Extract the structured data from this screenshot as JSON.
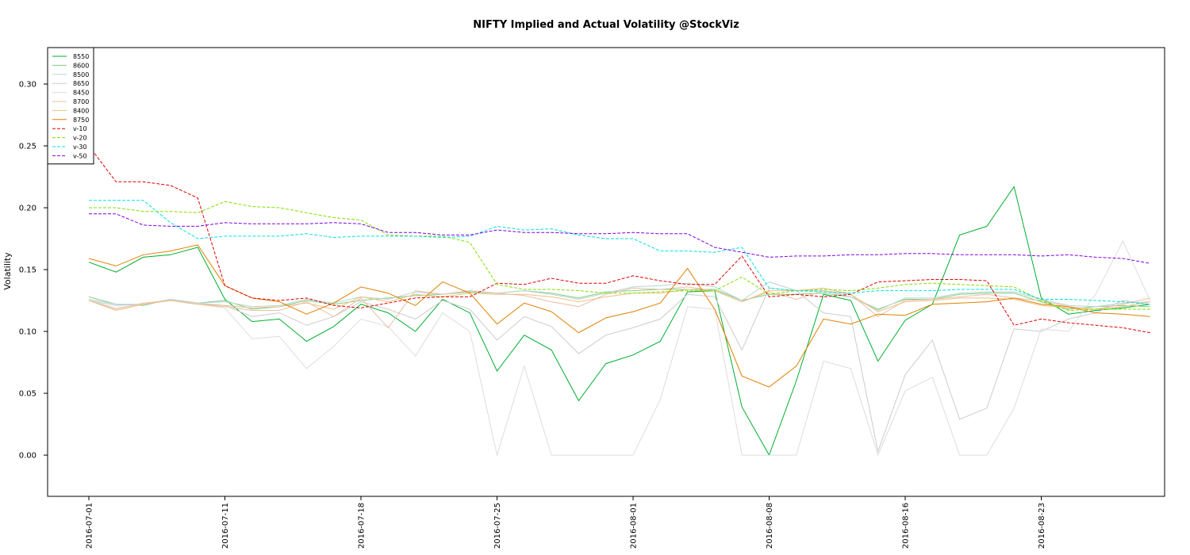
{
  "chart_data": {
    "type": "line",
    "title": "NIFTY Implied and Actual Volatility @StockViz",
    "y_label": "Volatility",
    "categories": [
      "2016-07-01",
      null,
      null,
      null,
      null,
      "2016-07-11",
      null,
      null,
      null,
      null,
      "2016-07-18",
      null,
      null,
      null,
      null,
      "2016-07-25",
      null,
      null,
      null,
      null,
      "2016-08-01",
      null,
      null,
      null,
      null,
      "2016-08-08",
      null,
      null,
      null,
      null,
      "2016-08-16",
      null,
      null,
      null,
      null,
      "2016-08-23",
      null,
      null,
      null,
      null
    ],
    "ylim": [
      -0.0333,
      0.3295
    ],
    "yticks": [
      {
        "value": 0,
        "label": "0.00"
      },
      {
        "value": 0.05,
        "label": "0.05"
      },
      {
        "value": 0.1,
        "label": "0.10"
      },
      {
        "value": 0.15,
        "label": "0.15"
      },
      {
        "value": 0.2,
        "label": "0.20"
      },
      {
        "value": 0.25,
        "label": "0.25"
      },
      {
        "value": 0.3,
        "label": "0.30"
      }
    ],
    "legend": "top-left",
    "series": [
      {
        "name": "8550",
        "color": "#00b030",
        "dashed": false,
        "values": [
          0.156,
          0.148,
          0.16,
          0.162,
          0.168,
          0.126,
          0.108,
          0.11,
          0.092,
          0.104,
          0.122,
          0.115,
          0.1,
          0.126,
          0.115,
          0.068,
          0.097,
          0.085,
          0.044,
          0.074,
          0.081,
          0.092,
          0.132,
          0.133,
          0.039,
          0.0,
          0.06,
          0.13,
          0.125,
          0.076,
          0.109,
          0.122,
          0.178,
          0.185,
          0.217,
          0.127,
          0.114,
          0.117,
          0.119,
          0.122
        ]
      },
      {
        "name": "8600",
        "color": "#80d080",
        "dashed": false,
        "values": [
          0.128,
          0.122,
          0.121,
          0.126,
          0.123,
          0.125,
          0.118,
          0.12,
          0.125,
          0.122,
          0.125,
          0.127,
          0.129,
          0.13,
          0.132,
          0.131,
          0.133,
          0.131,
          0.127,
          0.132,
          0.133,
          0.134,
          0.134,
          0.134,
          0.125,
          0.13,
          0.13,
          0.131,
          0.128,
          0.118,
          0.126,
          0.126,
          0.13,
          0.131,
          0.131,
          0.124,
          0.118,
          0.12,
          0.121,
          0.12
        ]
      },
      {
        "name": "8500",
        "color": "#b8d4d8",
        "dashed": false,
        "values": [
          0.126,
          0.122,
          0.122,
          0.126,
          0.123,
          0.124,
          0.12,
          0.121,
          0.126,
          0.123,
          0.128,
          0.126,
          0.132,
          0.13,
          0.133,
          0.131,
          0.133,
          0.13,
          0.126,
          0.131,
          0.136,
          0.137,
          0.139,
          0.136,
          0.125,
          0.14,
          0.133,
          0.133,
          0.128,
          0.117,
          0.127,
          0.127,
          0.131,
          0.132,
          0.132,
          0.126,
          0.121,
          0.12,
          0.123,
          0.124
        ]
      },
      {
        "name": "8650",
        "color": "#cccccc",
        "dashed": false,
        "values": [
          0.125,
          0.121,
          0.122,
          0.125,
          0.123,
          0.121,
          0.112,
          0.115,
          0.105,
          0.112,
          0.124,
          0.118,
          0.11,
          0.125,
          0.118,
          0.093,
          0.112,
          0.104,
          0.082,
          0.097,
          0.103,
          0.11,
          0.13,
          0.128,
          0.085,
          0.135,
          0.133,
          0.115,
          0.112,
          0.003,
          0.065,
          0.093,
          0.029,
          0.038,
          0.102,
          0.1,
          0.11,
          0.115,
          0.125,
          0.122
        ]
      },
      {
        "name": "8450",
        "color": "#dddddd",
        "dashed": false,
        "values": [
          0.125,
          0.119,
          0.122,
          0.125,
          0.122,
          0.119,
          0.094,
          0.096,
          0.07,
          0.088,
          0.11,
          0.104,
          0.08,
          0.115,
          0.1,
          0.0,
          0.072,
          0.0,
          0.0,
          0.0,
          0.0,
          0.045,
          0.12,
          0.118,
          0.0,
          0.0,
          0.0,
          0.076,
          0.07,
          0.0,
          0.052,
          0.063,
          0.0,
          0.0,
          0.038,
          0.102,
          0.1,
          0.13,
          0.173,
          0.125
        ]
      },
      {
        "name": "8700",
        "color": "#e8c0a8",
        "dashed": false,
        "values": [
          0.125,
          0.118,
          0.123,
          0.125,
          0.122,
          0.12,
          0.117,
          0.117,
          0.124,
          0.112,
          0.127,
          0.103,
          0.133,
          0.13,
          0.133,
          0.131,
          0.129,
          0.124,
          0.12,
          0.13,
          0.135,
          0.134,
          0.136,
          0.133,
          0.124,
          0.132,
          0.126,
          0.133,
          0.13,
          0.112,
          0.125,
          0.126,
          0.128,
          0.13,
          0.127,
          0.125,
          0.12,
          0.118,
          0.122,
          0.127
        ]
      },
      {
        "name": "8400",
        "color": "#f0c080",
        "dashed": false,
        "values": [
          0.125,
          0.117,
          0.122,
          0.125,
          0.122,
          0.121,
          0.119,
          0.12,
          0.123,
          0.118,
          0.128,
          0.124,
          0.13,
          0.128,
          0.131,
          0.13,
          0.13,
          0.128,
          0.124,
          0.128,
          0.131,
          0.131,
          0.134,
          0.133,
          0.124,
          0.133,
          0.133,
          0.135,
          0.13,
          0.116,
          0.124,
          0.125,
          0.127,
          0.127,
          0.126,
          0.121,
          0.119,
          0.118,
          0.12,
          0.124
        ]
      },
      {
        "name": "8750",
        "color": "#e08000",
        "dashed": false,
        "values": [
          0.159,
          0.153,
          0.162,
          0.165,
          0.17,
          0.137,
          0.127,
          0.124,
          0.114,
          0.123,
          0.136,
          0.131,
          0.121,
          0.14,
          0.131,
          0.106,
          0.123,
          0.116,
          0.099,
          0.111,
          0.116,
          0.123,
          0.151,
          0.118,
          0.064,
          0.055,
          0.072,
          0.11,
          0.106,
          0.114,
          0.113,
          0.122,
          0.123,
          0.124,
          0.127,
          0.122,
          0.12,
          0.115,
          0.114,
          0.112
        ]
      },
      {
        "name": "v-10",
        "color": "#e00000",
        "dashed": true,
        "values": [
          0.25,
          0.221,
          0.221,
          0.218,
          0.208,
          0.137,
          0.127,
          0.125,
          0.127,
          0.121,
          0.119,
          0.123,
          0.127,
          0.128,
          0.128,
          0.139,
          0.138,
          0.143,
          0.139,
          0.139,
          0.145,
          0.141,
          0.138,
          0.138,
          0.161,
          0.128,
          0.13,
          0.128,
          0.13,
          0.14,
          0.141,
          0.142,
          0.142,
          0.141,
          0.105,
          0.11,
          0.107,
          0.105,
          0.103,
          0.099
        ]
      },
      {
        "name": "v-20",
        "color": "#80e000",
        "dashed": true,
        "values": [
          0.2,
          0.2,
          0.197,
          0.197,
          0.196,
          0.205,
          0.201,
          0.2,
          0.196,
          0.192,
          0.19,
          0.178,
          0.177,
          0.177,
          0.172,
          0.138,
          0.134,
          0.134,
          0.133,
          0.131,
          0.131,
          0.132,
          0.133,
          0.133,
          0.144,
          0.13,
          0.133,
          0.134,
          0.133,
          0.135,
          0.138,
          0.139,
          0.138,
          0.137,
          0.136,
          0.125,
          0.117,
          0.118,
          0.118,
          0.118
        ]
      },
      {
        "name": "v-30",
        "color": "#00e0e0",
        "dashed": true,
        "values": [
          0.206,
          0.206,
          0.206,
          0.188,
          0.175,
          0.177,
          0.177,
          0.177,
          0.179,
          0.176,
          0.177,
          0.177,
          0.177,
          0.176,
          0.177,
          0.185,
          0.182,
          0.183,
          0.178,
          0.175,
          0.175,
          0.165,
          0.165,
          0.164,
          0.168,
          0.135,
          0.133,
          0.132,
          0.131,
          0.133,
          0.133,
          0.133,
          0.134,
          0.134,
          0.134,
          0.126,
          0.126,
          0.125,
          0.124,
          0.122
        ]
      },
      {
        "name": "v-50",
        "color": "#8000e0",
        "dashed": true,
        "values": [
          0.195,
          0.195,
          0.186,
          0.185,
          0.185,
          0.188,
          0.187,
          0.187,
          0.187,
          0.188,
          0.187,
          0.18,
          0.18,
          0.178,
          0.178,
          0.182,
          0.18,
          0.18,
          0.179,
          0.179,
          0.18,
          0.179,
          0.179,
          0.168,
          0.164,
          0.16,
          0.161,
          0.161,
          0.162,
          0.162,
          0.163,
          0.163,
          0.162,
          0.162,
          0.162,
          0.161,
          0.162,
          0.16,
          0.159,
          0.155
        ]
      }
    ]
  }
}
